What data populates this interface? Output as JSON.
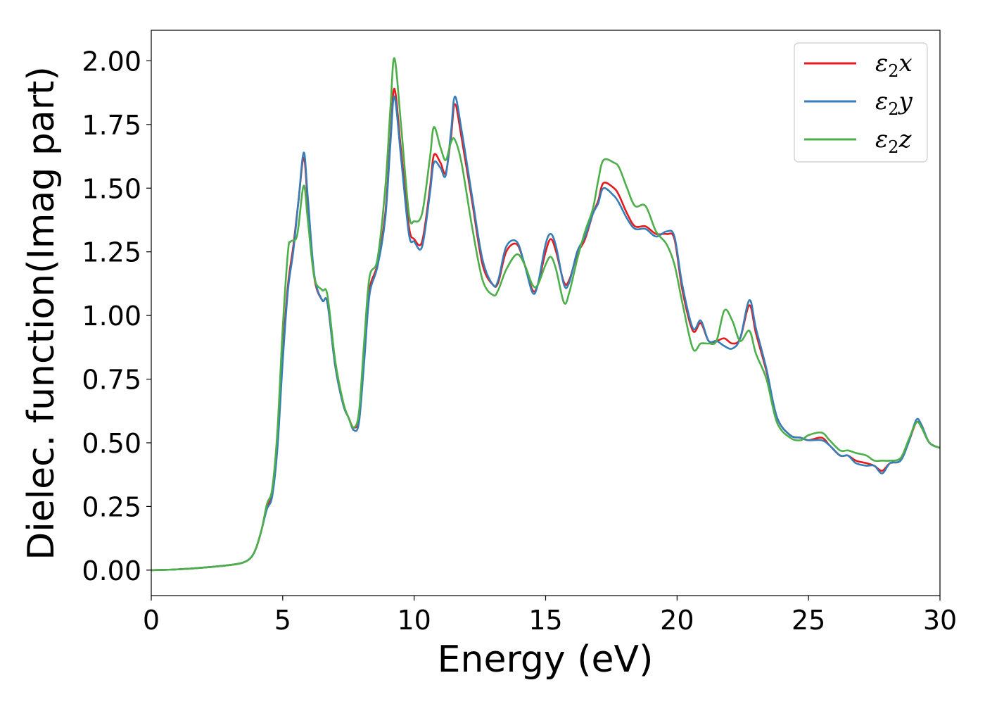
{
  "chart_data": {
    "type": "line",
    "title": "",
    "xlabel": "Energy (eV)",
    "ylabel": "Dielec. function(Imag part)",
    "xlim": [
      0,
      30
    ],
    "ylim": [
      -0.1,
      2.12
    ],
    "xticks": [
      0,
      5,
      10,
      15,
      20,
      25,
      30
    ],
    "xtick_labels": [
      "0",
      "5",
      "10",
      "15",
      "20",
      "25",
      "30"
    ],
    "yticks": [
      0.0,
      0.25,
      0.5,
      0.75,
      1.0,
      1.25,
      1.5,
      1.75,
      2.0
    ],
    "ytick_labels": [
      "0.00",
      "0.25",
      "0.50",
      "0.75",
      "1.00",
      "1.25",
      "1.50",
      "1.75",
      "2.00"
    ],
    "grid": false,
    "legend_position": "top-right",
    "series": [
      {
        "name": "ε2x",
        "legend_base": "ε",
        "legend_sub": "2",
        "legend_var": "x",
        "color": "#e41a1c",
        "points": [
          [
            0,
            0.0
          ],
          [
            1,
            0.003
          ],
          [
            2,
            0.01
          ],
          [
            3,
            0.02
          ],
          [
            3.5,
            0.03
          ],
          [
            3.8,
            0.05
          ],
          [
            4.0,
            0.09
          ],
          [
            4.2,
            0.16
          ],
          [
            4.4,
            0.25
          ],
          [
            4.6,
            0.3
          ],
          [
            4.8,
            0.5
          ],
          [
            5.0,
            0.85
          ],
          [
            5.2,
            1.12
          ],
          [
            5.4,
            1.27
          ],
          [
            5.6,
            1.45
          ],
          [
            5.8,
            1.62
          ],
          [
            5.95,
            1.45
          ],
          [
            6.2,
            1.15
          ],
          [
            6.5,
            1.06
          ],
          [
            6.7,
            1.05
          ],
          [
            7.0,
            0.8
          ],
          [
            7.3,
            0.65
          ],
          [
            7.5,
            0.6
          ],
          [
            7.7,
            0.56
          ],
          [
            7.9,
            0.6
          ],
          [
            8.1,
            0.85
          ],
          [
            8.3,
            1.1
          ],
          [
            8.6,
            1.2
          ],
          [
            8.9,
            1.4
          ],
          [
            9.1,
            1.7
          ],
          [
            9.25,
            1.89
          ],
          [
            9.5,
            1.65
          ],
          [
            9.8,
            1.35
          ],
          [
            10.0,
            1.3
          ],
          [
            10.3,
            1.29
          ],
          [
            10.6,
            1.5
          ],
          [
            10.75,
            1.63
          ],
          [
            11.0,
            1.6
          ],
          [
            11.2,
            1.56
          ],
          [
            11.4,
            1.7
          ],
          [
            11.55,
            1.83
          ],
          [
            11.8,
            1.7
          ],
          [
            12.2,
            1.45
          ],
          [
            12.6,
            1.2
          ],
          [
            13.0,
            1.12
          ],
          [
            13.2,
            1.13
          ],
          [
            13.5,
            1.25
          ],
          [
            13.9,
            1.28
          ],
          [
            14.2,
            1.2
          ],
          [
            14.5,
            1.1
          ],
          [
            14.7,
            1.12
          ],
          [
            15.0,
            1.25
          ],
          [
            15.2,
            1.3
          ],
          [
            15.4,
            1.25
          ],
          [
            15.7,
            1.13
          ],
          [
            15.9,
            1.14
          ],
          [
            16.2,
            1.24
          ],
          [
            16.5,
            1.3
          ],
          [
            16.8,
            1.4
          ],
          [
            17.0,
            1.45
          ],
          [
            17.2,
            1.52
          ],
          [
            17.6,
            1.5
          ],
          [
            17.8,
            1.47
          ],
          [
            18.1,
            1.4
          ],
          [
            18.4,
            1.35
          ],
          [
            18.8,
            1.35
          ],
          [
            19.2,
            1.32
          ],
          [
            19.6,
            1.32
          ],
          [
            19.9,
            1.3
          ],
          [
            20.2,
            1.1
          ],
          [
            20.6,
            0.94
          ],
          [
            20.9,
            0.97
          ],
          [
            21.2,
            0.9
          ],
          [
            21.5,
            0.9
          ],
          [
            21.8,
            0.91
          ],
          [
            22.1,
            0.89
          ],
          [
            22.4,
            0.91
          ],
          [
            22.75,
            1.04
          ],
          [
            23.0,
            0.93
          ],
          [
            23.4,
            0.78
          ],
          [
            23.8,
            0.6
          ],
          [
            24.3,
            0.53
          ],
          [
            24.7,
            0.52
          ],
          [
            25.0,
            0.51
          ],
          [
            25.5,
            0.52
          ],
          [
            25.8,
            0.49
          ],
          [
            26.2,
            0.45
          ],
          [
            26.5,
            0.45
          ],
          [
            26.8,
            0.43
          ],
          [
            27.2,
            0.42
          ],
          [
            27.5,
            0.41
          ],
          [
            27.8,
            0.39
          ],
          [
            28.1,
            0.42
          ],
          [
            28.5,
            0.43
          ],
          [
            28.8,
            0.5
          ],
          [
            29.1,
            0.58
          ],
          [
            29.3,
            0.56
          ],
          [
            29.6,
            0.5
          ],
          [
            30.0,
            0.48
          ]
        ]
      },
      {
        "name": "ε2y",
        "legend_base": "ε",
        "legend_sub": "2",
        "legend_var": "y",
        "color": "#377eb8",
        "points": [
          [
            0,
            0.0
          ],
          [
            1,
            0.003
          ],
          [
            2,
            0.01
          ],
          [
            3,
            0.02
          ],
          [
            3.5,
            0.03
          ],
          [
            3.8,
            0.05
          ],
          [
            4.0,
            0.09
          ],
          [
            4.2,
            0.16
          ],
          [
            4.4,
            0.24
          ],
          [
            4.6,
            0.29
          ],
          [
            4.8,
            0.48
          ],
          [
            5.0,
            0.82
          ],
          [
            5.2,
            1.1
          ],
          [
            5.4,
            1.25
          ],
          [
            5.6,
            1.45
          ],
          [
            5.8,
            1.64
          ],
          [
            5.95,
            1.47
          ],
          [
            6.2,
            1.16
          ],
          [
            6.5,
            1.06
          ],
          [
            6.7,
            1.05
          ],
          [
            7.0,
            0.8
          ],
          [
            7.3,
            0.65
          ],
          [
            7.5,
            0.6
          ],
          [
            7.7,
            0.55
          ],
          [
            7.9,
            0.58
          ],
          [
            8.1,
            0.82
          ],
          [
            8.3,
            1.08
          ],
          [
            8.6,
            1.19
          ],
          [
            8.9,
            1.38
          ],
          [
            9.1,
            1.68
          ],
          [
            9.25,
            1.86
          ],
          [
            9.5,
            1.62
          ],
          [
            9.8,
            1.32
          ],
          [
            10.0,
            1.29
          ],
          [
            10.3,
            1.27
          ],
          [
            10.6,
            1.48
          ],
          [
            10.75,
            1.6
          ],
          [
            11.0,
            1.58
          ],
          [
            11.2,
            1.55
          ],
          [
            11.4,
            1.72
          ],
          [
            11.55,
            1.86
          ],
          [
            11.8,
            1.73
          ],
          [
            12.2,
            1.47
          ],
          [
            12.6,
            1.22
          ],
          [
            13.0,
            1.12
          ],
          [
            13.2,
            1.14
          ],
          [
            13.5,
            1.27
          ],
          [
            13.9,
            1.29
          ],
          [
            14.2,
            1.2
          ],
          [
            14.5,
            1.09
          ],
          [
            14.7,
            1.12
          ],
          [
            15.0,
            1.28
          ],
          [
            15.2,
            1.32
          ],
          [
            15.4,
            1.27
          ],
          [
            15.7,
            1.12
          ],
          [
            15.9,
            1.13
          ],
          [
            16.2,
            1.25
          ],
          [
            16.5,
            1.31
          ],
          [
            16.8,
            1.4
          ],
          [
            17.0,
            1.44
          ],
          [
            17.2,
            1.5
          ],
          [
            17.6,
            1.47
          ],
          [
            17.8,
            1.44
          ],
          [
            18.1,
            1.38
          ],
          [
            18.4,
            1.34
          ],
          [
            18.8,
            1.34
          ],
          [
            19.2,
            1.31
          ],
          [
            19.6,
            1.33
          ],
          [
            19.9,
            1.31
          ],
          [
            20.2,
            1.12
          ],
          [
            20.6,
            0.95
          ],
          [
            20.9,
            0.98
          ],
          [
            21.2,
            0.9
          ],
          [
            21.5,
            0.9
          ],
          [
            21.8,
            0.88
          ],
          [
            22.1,
            0.87
          ],
          [
            22.4,
            0.91
          ],
          [
            22.75,
            1.06
          ],
          [
            23.0,
            0.95
          ],
          [
            23.4,
            0.79
          ],
          [
            23.8,
            0.6
          ],
          [
            24.3,
            0.53
          ],
          [
            24.7,
            0.52
          ],
          [
            25.0,
            0.51
          ],
          [
            25.5,
            0.51
          ],
          [
            25.8,
            0.49
          ],
          [
            26.2,
            0.45
          ],
          [
            26.5,
            0.45
          ],
          [
            26.8,
            0.42
          ],
          [
            27.2,
            0.41
          ],
          [
            27.5,
            0.41
          ],
          [
            27.8,
            0.38
          ],
          [
            28.1,
            0.42
          ],
          [
            28.5,
            0.43
          ],
          [
            28.8,
            0.5
          ],
          [
            29.1,
            0.59
          ],
          [
            29.3,
            0.57
          ],
          [
            29.6,
            0.5
          ],
          [
            30.0,
            0.48
          ]
        ]
      },
      {
        "name": "ε2z",
        "legend_base": "ε",
        "legend_sub": "2",
        "legend_var": "z",
        "color": "#4daf4a",
        "points": [
          [
            0,
            0.0
          ],
          [
            1,
            0.003
          ],
          [
            2,
            0.01
          ],
          [
            3,
            0.02
          ],
          [
            3.5,
            0.03
          ],
          [
            3.8,
            0.05
          ],
          [
            4.0,
            0.09
          ],
          [
            4.2,
            0.16
          ],
          [
            4.4,
            0.26
          ],
          [
            4.6,
            0.32
          ],
          [
            4.8,
            0.55
          ],
          [
            5.0,
            0.95
          ],
          [
            5.2,
            1.25
          ],
          [
            5.3,
            1.29
          ],
          [
            5.5,
            1.3
          ],
          [
            5.6,
            1.35
          ],
          [
            5.8,
            1.51
          ],
          [
            5.95,
            1.38
          ],
          [
            6.2,
            1.15
          ],
          [
            6.5,
            1.1
          ],
          [
            6.7,
            1.08
          ],
          [
            7.0,
            0.82
          ],
          [
            7.3,
            0.66
          ],
          [
            7.5,
            0.6
          ],
          [
            7.7,
            0.56
          ],
          [
            7.9,
            0.62
          ],
          [
            8.1,
            0.9
          ],
          [
            8.3,
            1.15
          ],
          [
            8.6,
            1.22
          ],
          [
            8.9,
            1.5
          ],
          [
            9.1,
            1.82
          ],
          [
            9.25,
            2.01
          ],
          [
            9.5,
            1.75
          ],
          [
            9.8,
            1.4
          ],
          [
            10.0,
            1.37
          ],
          [
            10.3,
            1.4
          ],
          [
            10.6,
            1.62
          ],
          [
            10.75,
            1.74
          ],
          [
            11.0,
            1.66
          ],
          [
            11.2,
            1.61
          ],
          [
            11.4,
            1.68
          ],
          [
            11.55,
            1.69
          ],
          [
            11.8,
            1.6
          ],
          [
            12.2,
            1.35
          ],
          [
            12.6,
            1.14
          ],
          [
            13.0,
            1.08
          ],
          [
            13.2,
            1.1
          ],
          [
            13.5,
            1.18
          ],
          [
            13.9,
            1.24
          ],
          [
            14.2,
            1.2
          ],
          [
            14.5,
            1.12
          ],
          [
            14.7,
            1.12
          ],
          [
            15.0,
            1.2
          ],
          [
            15.2,
            1.23
          ],
          [
            15.4,
            1.18
          ],
          [
            15.7,
            1.05
          ],
          [
            15.9,
            1.09
          ],
          [
            16.2,
            1.22
          ],
          [
            16.5,
            1.33
          ],
          [
            16.8,
            1.42
          ],
          [
            17.0,
            1.53
          ],
          [
            17.2,
            1.61
          ],
          [
            17.6,
            1.6
          ],
          [
            17.8,
            1.58
          ],
          [
            18.1,
            1.5
          ],
          [
            18.4,
            1.43
          ],
          [
            18.8,
            1.43
          ],
          [
            19.2,
            1.33
          ],
          [
            19.6,
            1.28
          ],
          [
            19.9,
            1.2
          ],
          [
            20.2,
            1.05
          ],
          [
            20.6,
            0.87
          ],
          [
            20.9,
            0.89
          ],
          [
            21.2,
            0.89
          ],
          [
            21.5,
            0.9
          ],
          [
            21.8,
            1.02
          ],
          [
            22.1,
            0.98
          ],
          [
            22.4,
            0.9
          ],
          [
            22.75,
            0.94
          ],
          [
            23.0,
            0.85
          ],
          [
            23.4,
            0.75
          ],
          [
            23.8,
            0.58
          ],
          [
            24.3,
            0.52
          ],
          [
            24.7,
            0.51
          ],
          [
            25.0,
            0.53
          ],
          [
            25.5,
            0.54
          ],
          [
            25.8,
            0.51
          ],
          [
            26.2,
            0.47
          ],
          [
            26.5,
            0.47
          ],
          [
            26.8,
            0.46
          ],
          [
            27.2,
            0.45
          ],
          [
            27.5,
            0.43
          ],
          [
            27.8,
            0.43
          ],
          [
            28.1,
            0.43
          ],
          [
            28.5,
            0.44
          ],
          [
            28.8,
            0.51
          ],
          [
            29.1,
            0.58
          ],
          [
            29.3,
            0.56
          ],
          [
            29.6,
            0.5
          ],
          [
            30.0,
            0.48
          ]
        ]
      }
    ]
  }
}
